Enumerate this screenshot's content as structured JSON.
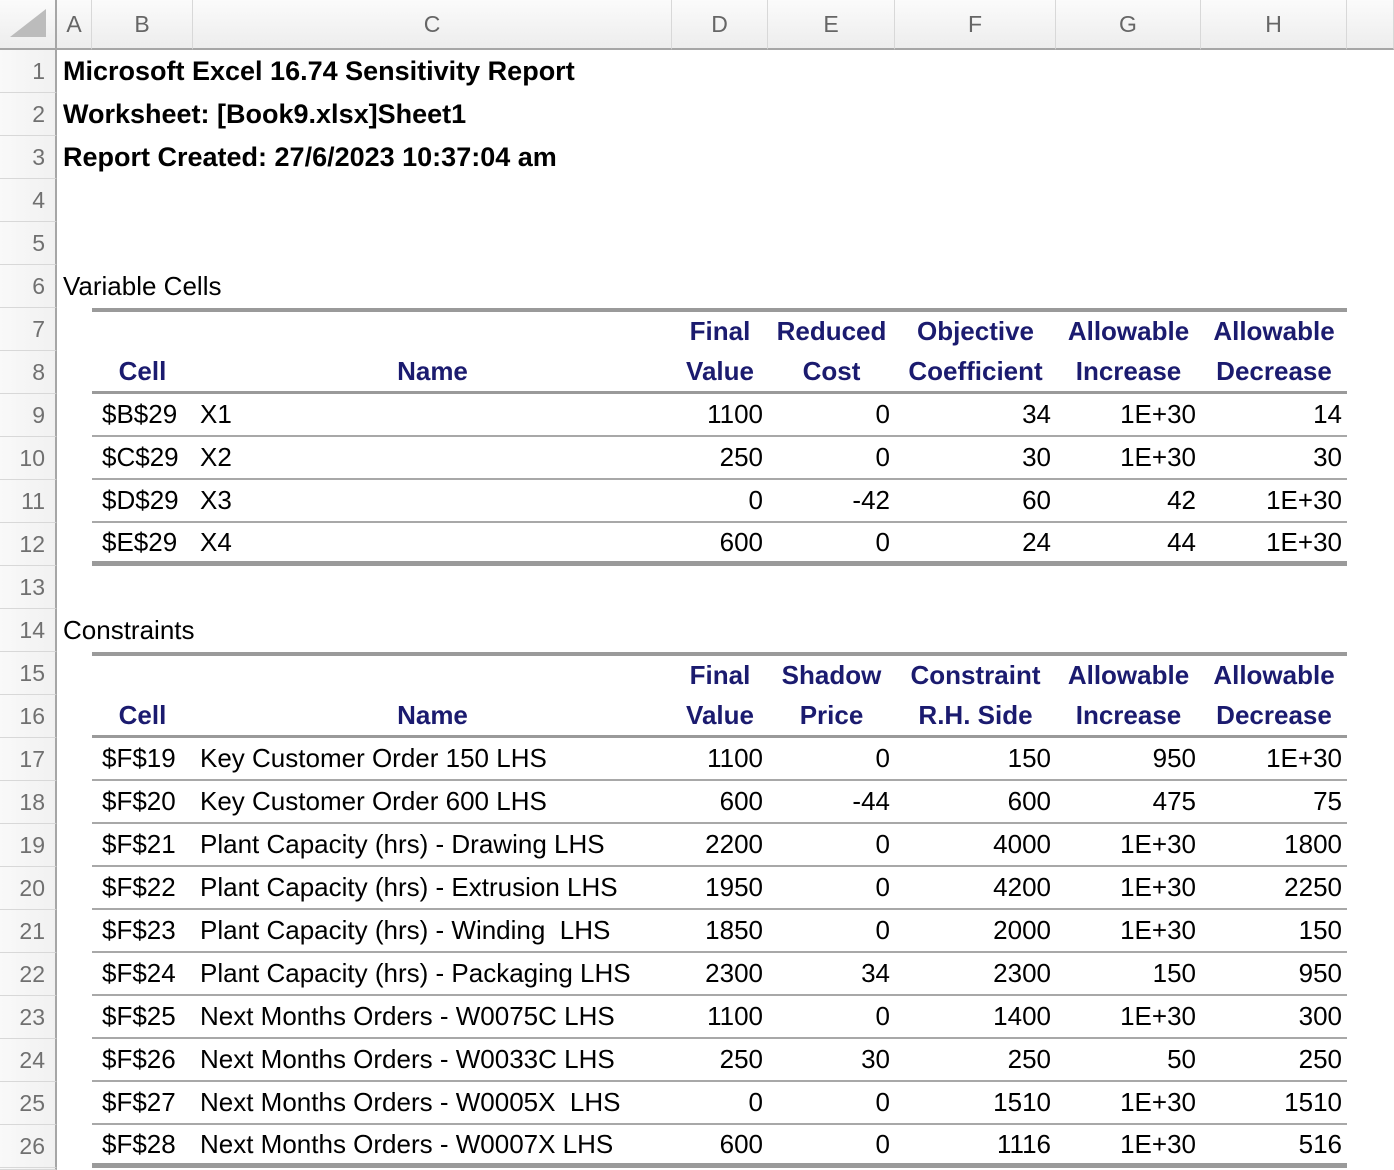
{
  "titles": {
    "line1": "Microsoft Excel 16.74 Sensitivity Report",
    "line2": "Worksheet: [Book9.xlsx]Sheet1",
    "line3": "Report Created: 27/6/2023 10:37:04 am"
  },
  "grid": {
    "columns": [
      "A",
      "B",
      "C",
      "D",
      "E",
      "F",
      "G",
      "H"
    ],
    "rows": [
      "1",
      "2",
      "3",
      "4",
      "5",
      "6",
      "7",
      "8",
      "9",
      "10",
      "11",
      "12",
      "13",
      "14",
      "15",
      "16",
      "17",
      "18",
      "19",
      "20",
      "21",
      "22",
      "23",
      "24",
      "25",
      "26"
    ]
  },
  "colors": {
    "header_text": "#1b1b6f",
    "table_border": "#9a9a9a"
  },
  "variable_cells": {
    "section_label": "Variable Cells",
    "header_top": [
      "Final",
      "Reduced",
      "Objective",
      "Allowable",
      "Allowable"
    ],
    "header_bottom": [
      "Cell",
      "Name",
      "Value",
      "Cost",
      "Coefficient",
      "Increase",
      "Decrease"
    ],
    "rows": [
      {
        "cell": "$B$29",
        "name": "X1",
        "final_value": "1100",
        "reduced_cost": "0",
        "objective_coefficient": "34",
        "allowable_increase": "1E+30",
        "allowable_decrease": "14"
      },
      {
        "cell": "$C$29",
        "name": "X2",
        "final_value": "250",
        "reduced_cost": "0",
        "objective_coefficient": "30",
        "allowable_increase": "1E+30",
        "allowable_decrease": "30"
      },
      {
        "cell": "$D$29",
        "name": "X3",
        "final_value": "0",
        "reduced_cost": "-42",
        "objective_coefficient": "60",
        "allowable_increase": "42",
        "allowable_decrease": "1E+30"
      },
      {
        "cell": "$E$29",
        "name": "X4",
        "final_value": "600",
        "reduced_cost": "0",
        "objective_coefficient": "24",
        "allowable_increase": "44",
        "allowable_decrease": "1E+30"
      }
    ]
  },
  "constraints": {
    "section_label": "Constraints",
    "header_top": [
      "Final",
      "Shadow",
      "Constraint",
      "Allowable",
      "Allowable"
    ],
    "header_bottom": [
      "Cell",
      "Name",
      "Value",
      "Price",
      "R.H. Side",
      "Increase",
      "Decrease"
    ],
    "rows": [
      {
        "cell": "$F$19",
        "name": "Key Customer Order 150 LHS",
        "final_value": "1100",
        "shadow_price": "0",
        "rhs": "150",
        "allowable_increase": "950",
        "allowable_decrease": "1E+30"
      },
      {
        "cell": "$F$20",
        "name": "Key Customer Order 600 LHS",
        "final_value": "600",
        "shadow_price": "-44",
        "rhs": "600",
        "allowable_increase": "475",
        "allowable_decrease": "75"
      },
      {
        "cell": "$F$21",
        "name": "Plant Capacity (hrs) - Drawing LHS",
        "final_value": "2200",
        "shadow_price": "0",
        "rhs": "4000",
        "allowable_increase": "1E+30",
        "allowable_decrease": "1800"
      },
      {
        "cell": "$F$22",
        "name": "Plant Capacity (hrs) - Extrusion LHS",
        "final_value": "1950",
        "shadow_price": "0",
        "rhs": "4200",
        "allowable_increase": "1E+30",
        "allowable_decrease": "2250"
      },
      {
        "cell": "$F$23",
        "name": "Plant Capacity (hrs) - Winding  LHS",
        "final_value": "1850",
        "shadow_price": "0",
        "rhs": "2000",
        "allowable_increase": "1E+30",
        "allowable_decrease": "150"
      },
      {
        "cell": "$F$24",
        "name": "Plant Capacity (hrs) - Packaging LHS",
        "final_value": "2300",
        "shadow_price": "34",
        "rhs": "2300",
        "allowable_increase": "150",
        "allowable_decrease": "950"
      },
      {
        "cell": "$F$25",
        "name": "Next Months Orders - W0075C LHS",
        "final_value": "1100",
        "shadow_price": "0",
        "rhs": "1400",
        "allowable_increase": "1E+30",
        "allowable_decrease": "300"
      },
      {
        "cell": "$F$26",
        "name": "Next Months Orders - W0033C LHS",
        "final_value": "250",
        "shadow_price": "30",
        "rhs": "250",
        "allowable_increase": "50",
        "allowable_decrease": "250"
      },
      {
        "cell": "$F$27",
        "name": "Next Months Orders - W0005X  LHS",
        "final_value": "0",
        "shadow_price": "0",
        "rhs": "1510",
        "allowable_increase": "1E+30",
        "allowable_decrease": "1510"
      },
      {
        "cell": "$F$28",
        "name": "Next Months Orders - W0007X LHS",
        "final_value": "600",
        "shadow_price": "0",
        "rhs": "1116",
        "allowable_increase": "1E+30",
        "allowable_decrease": "516"
      }
    ]
  }
}
